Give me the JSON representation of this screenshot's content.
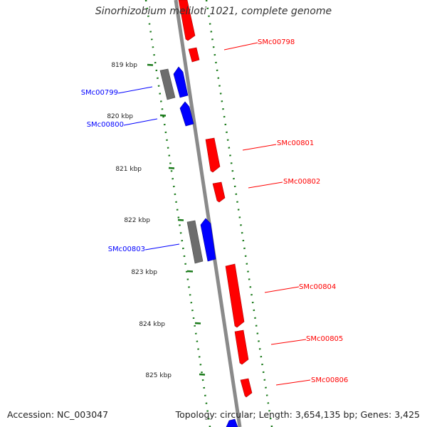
{
  "title": "Sinorhizobium meliloti 1021, complete genome",
  "footer": {
    "accession": "Accession: NC_003047",
    "summary": "Topology: circular; Length: 3,654,135 bp; Genes: 3,425"
  },
  "colors": {
    "forward": "#ff0000",
    "reverse": "#0000ff",
    "rna": "#6d6d6d",
    "backbone": "#8a8a8a",
    "ticks": "#1a7a1a",
    "label_text": "#222222"
  },
  "scale_ticks": [
    "819 kbp",
    "820 kbp",
    "821 kbp",
    "822 kbp",
    "823 kbp",
    "824 kbp",
    "825 kbp"
  ],
  "forward_genes": [
    "SMc00798",
    "SMc00801",
    "SMc00802",
    "SMc00804",
    "SMc00805",
    "SMc00806"
  ],
  "reverse_genes": [
    "SMc00799",
    "SMc00800",
    "SMc00803"
  ]
}
